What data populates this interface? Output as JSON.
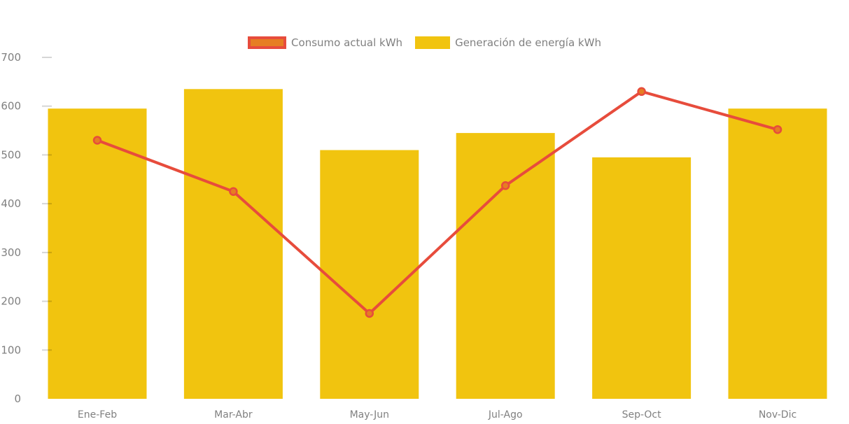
{
  "chart_data": {
    "type": "combo-bar-line",
    "title": "",
    "xlabel": "",
    "ylabel": "",
    "categories": [
      "Ene-Feb",
      "Mar-Abr",
      "May-Jun",
      "Jul-Ago",
      "Sep-Oct",
      "Nov-Dic"
    ],
    "series": [
      {
        "name": "Consumo actual kWh",
        "type": "line",
        "color": "#E74C3C",
        "marker_fill": "#E67E22",
        "values": [
          530,
          425,
          175,
          437,
          630,
          552
        ]
      },
      {
        "name": "Generación de energía kWh",
        "type": "bar",
        "color": "#F1C40F",
        "values": [
          595,
          635,
          510,
          545,
          495,
          595
        ]
      }
    ],
    "ylim": [
      0,
      700
    ],
    "yticks": [
      0,
      100,
      200,
      300,
      400,
      500,
      600,
      700
    ],
    "grid": false,
    "legend_position": "top-center",
    "axis_text_color": "#808080",
    "tick_color": "rgba(0,0,0,0.16)",
    "background": "#FFFFFF"
  }
}
